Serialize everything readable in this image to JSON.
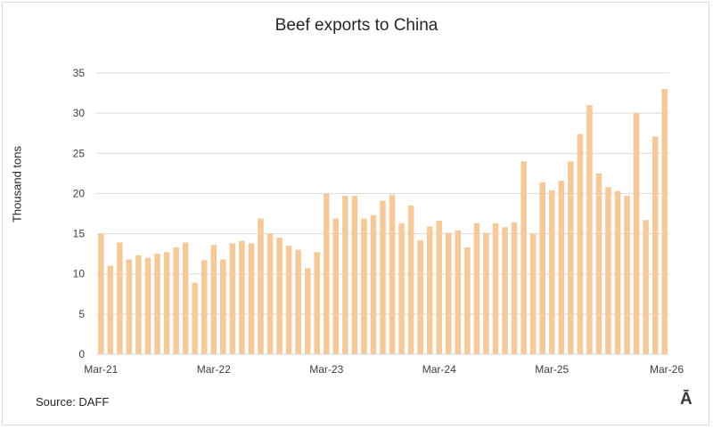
{
  "chart_data": {
    "type": "bar",
    "title": "Beef exports to China",
    "xlabel": "",
    "ylabel": "Thousand tons",
    "ylim": [
      0,
      35
    ],
    "yticks": [
      0,
      5,
      10,
      15,
      20,
      25,
      30,
      35
    ],
    "grid": true,
    "bar_color": "#F5C999",
    "x_tick_labels": [
      "Mar-21",
      "Mar-22",
      "Mar-23",
      "Mar-24",
      "Mar-25",
      "Mar-26"
    ],
    "x_tick_months": [
      "2021-03",
      "2022-03",
      "2023-03",
      "2024-03",
      "2025-03",
      "2026-03"
    ],
    "x": [
      "2021-03",
      "2021-04",
      "2021-05",
      "2021-06",
      "2021-07",
      "2021-08",
      "2021-09",
      "2021-10",
      "2021-11",
      "2021-12",
      "2022-01",
      "2022-02",
      "2022-03",
      "2022-04",
      "2022-05",
      "2022-06",
      "2022-07",
      "2022-08",
      "2022-09",
      "2022-10",
      "2022-11",
      "2022-12",
      "2023-01",
      "2023-02",
      "2023-03",
      "2023-04",
      "2023-05",
      "2023-06",
      "2023-07",
      "2023-08",
      "2023-09",
      "2023-10",
      "2023-11",
      "2023-12",
      "2024-01",
      "2024-02",
      "2024-03",
      "2024-04",
      "2024-05",
      "2024-06",
      "2024-07",
      "2024-08",
      "2024-09",
      "2024-10",
      "2024-11",
      "2024-12",
      "2025-01",
      "2025-02",
      "2025-03",
      "2025-04",
      "2025-05",
      "2025-06",
      "2025-07",
      "2025-08",
      "2025-09",
      "2025-10",
      "2025-11",
      "2025-12",
      "2026-01",
      "2026-02",
      "2026-03"
    ],
    "values": [
      15.0,
      11.0,
      13.9,
      11.8,
      12.3,
      12.0,
      12.5,
      12.7,
      13.3,
      13.9,
      8.9,
      11.7,
      13.6,
      11.8,
      13.8,
      14.1,
      13.8,
      16.9,
      15.0,
      14.5,
      13.5,
      13.0,
      10.7,
      12.7,
      20.0,
      16.9,
      19.7,
      19.7,
      16.9,
      17.3,
      19.1,
      19.8,
      16.3,
      18.5,
      14.2,
      15.9,
      16.6,
      15.1,
      15.4,
      13.3,
      16.3,
      15.1,
      16.3,
      15.8,
      16.4,
      24.0,
      15.0,
      21.4,
      20.4,
      21.6,
      24.0,
      27.4,
      31.0,
      22.5,
      20.8,
      20.3,
      19.7,
      30.0,
      16.7,
      27.1,
      33.0
    ]
  },
  "source_label": "Source: DAFF",
  "logo_text": "Ā"
}
